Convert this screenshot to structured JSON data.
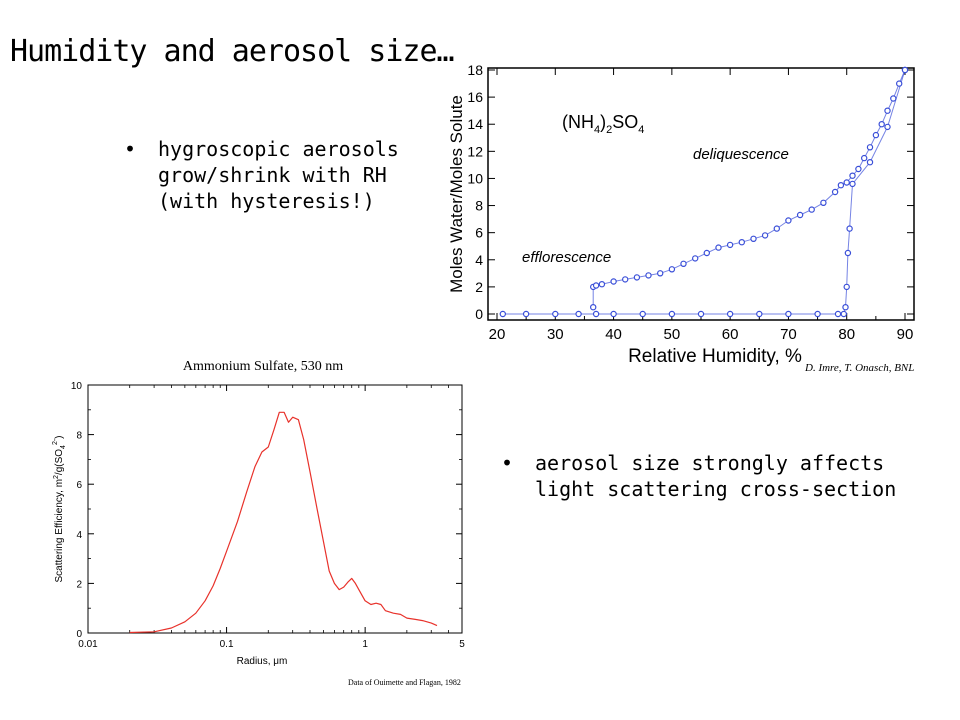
{
  "slide": {
    "title": "Humidity and aerosol size…",
    "bullet1": [
      "hygroscopic aerosols",
      "grow/shrink with RH",
      "(with hysteresis!)"
    ],
    "bullet2": [
      "aerosol size strongly affects",
      "light scattering cross-section"
    ],
    "bullet_symbol": "•"
  },
  "chart_data": [
    {
      "type": "scatter",
      "title": "",
      "xlabel": "Relative Humidity, %",
      "ylabel": "Moles Water/Moles Solute",
      "xlim": [
        20,
        90
      ],
      "ylim": [
        0,
        18
      ],
      "xticks": [
        20,
        30,
        40,
        50,
        60,
        70,
        80,
        90
      ],
      "yticks": [
        0,
        2,
        4,
        6,
        8,
        10,
        12,
        14,
        16,
        18
      ],
      "annotations": {
        "compound_main": "(NH",
        "compound_sub1": "4",
        "compound_mid": ")",
        "compound_sub2": "2",
        "compound_end": "SO",
        "compound_sub3": "4",
        "deliquescence": "deliquescence",
        "efflorescence": "efflorescence"
      },
      "credit": "D. Imre, T. Onasch, BNL",
      "marker_color": "#3a4fd8",
      "series": [
        {
          "x": [
            21,
            25,
            30,
            34,
            37,
            40,
            45,
            50,
            55,
            60,
            65,
            70,
            75,
            78.5,
            79.5,
            79.8,
            80,
            80.2,
            80.5,
            81,
            84,
            87,
            90
          ],
          "y": [
            0,
            0,
            0,
            0,
            0,
            0,
            0,
            0,
            0,
            0,
            0,
            0,
            0,
            0,
            0,
            0.5,
            2,
            4.5,
            6.3,
            9.6,
            11.2,
            13.8,
            18
          ]
        },
        {
          "x": [
            36.5,
            36.5,
            37,
            38,
            40,
            42,
            44,
            46,
            48,
            50,
            52,
            54,
            56,
            58,
            60,
            62,
            64,
            66,
            68,
            70,
            72,
            74,
            76,
            78,
            79,
            80,
            81,
            82,
            83,
            84,
            85,
            86,
            87,
            88,
            89,
            90
          ],
          "y": [
            0.5,
            2,
            2.1,
            2.2,
            2.4,
            2.55,
            2.7,
            2.85,
            3.0,
            3.3,
            3.7,
            4.1,
            4.5,
            4.9,
            5.1,
            5.3,
            5.55,
            5.8,
            6.3,
            6.9,
            7.3,
            7.7,
            8.2,
            9.0,
            9.5,
            9.7,
            10.2,
            10.7,
            11.5,
            12.3,
            13.2,
            14.0,
            15.0,
            15.9,
            17.0,
            18.0
          ]
        }
      ]
    },
    {
      "type": "line",
      "title": "Ammonium Sulfate, 530 nm",
      "xlabel": "Radius, μm",
      "ylabel_prefix": "Scattering Efficiency, m",
      "ylabel_sup1": "2",
      "ylabel_mid": "/g(SO",
      "ylabel_sub": "4",
      "ylabel_sup2": "2-",
      "ylabel_end": ")",
      "x_scale": "log",
      "xlim": [
        0.01,
        5
      ],
      "ylim": [
        0,
        10
      ],
      "xticks": [
        0.01,
        0.1,
        1,
        5
      ],
      "xtick_labels": [
        "0.01",
        "0.1",
        "1",
        "5"
      ],
      "yticks": [
        0,
        2,
        4,
        6,
        8,
        10
      ],
      "credit": "Data of Ouimette and Flagan, 1982",
      "line_color": "#e8322b",
      "series": [
        {
          "x": [
            0.02,
            0.03,
            0.04,
            0.05,
            0.06,
            0.07,
            0.08,
            0.09,
            0.1,
            0.12,
            0.14,
            0.16,
            0.18,
            0.2,
            0.22,
            0.24,
            0.26,
            0.28,
            0.3,
            0.33,
            0.36,
            0.4,
            0.45,
            0.5,
            0.55,
            0.6,
            0.65,
            0.7,
            0.75,
            0.8,
            0.85,
            0.9,
            1.0,
            1.1,
            1.2,
            1.3,
            1.4,
            1.6,
            1.8,
            2.0,
            2.3,
            2.6,
            3.0,
            3.3
          ],
          "y": [
            0.02,
            0.05,
            0.2,
            0.45,
            0.8,
            1.3,
            1.9,
            2.6,
            3.3,
            4.5,
            5.7,
            6.7,
            7.3,
            7.5,
            8.2,
            8.9,
            8.9,
            8.5,
            8.7,
            8.6,
            7.8,
            6.5,
            5.0,
            3.7,
            2.5,
            2.0,
            1.75,
            1.85,
            2.05,
            2.2,
            2.0,
            1.75,
            1.3,
            1.15,
            1.2,
            1.15,
            0.9,
            0.8,
            0.75,
            0.6,
            0.55,
            0.5,
            0.4,
            0.3
          ]
        }
      ]
    }
  ]
}
